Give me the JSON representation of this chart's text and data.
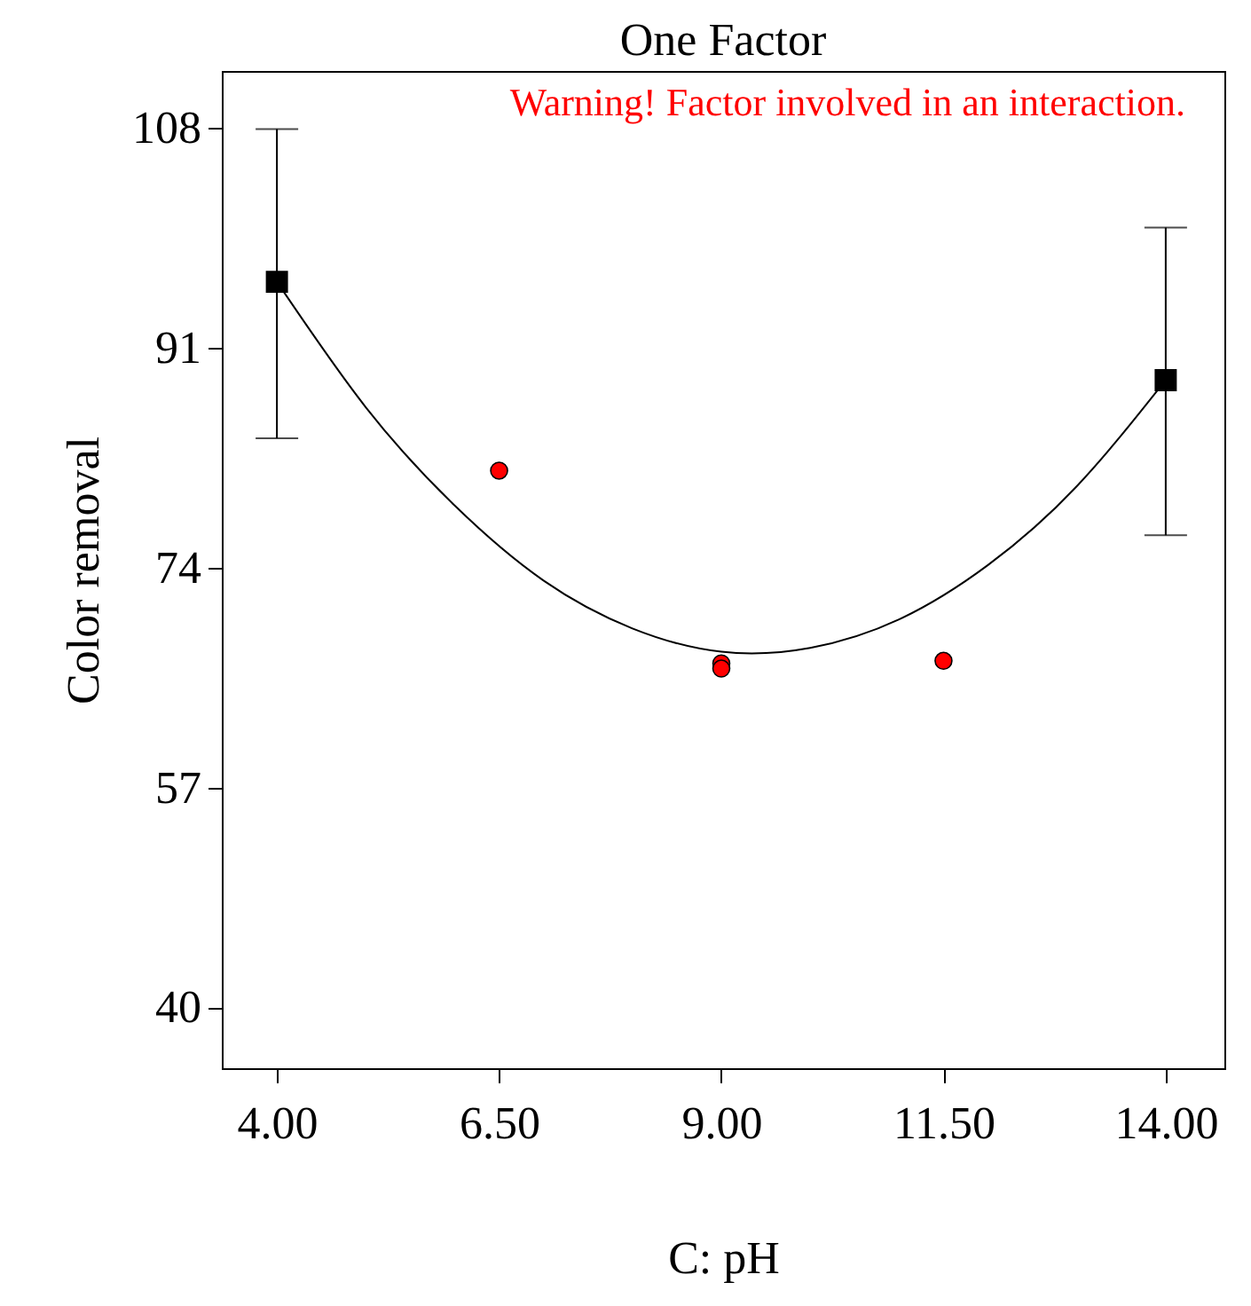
{
  "chart_data": {
    "type": "scatter",
    "title": "One Factor",
    "xlabel": "C: pH",
    "ylabel": "Color removal",
    "annotations": [
      "Warning! Factor involved in an interaction."
    ],
    "xlim": [
      3.38,
      14.66
    ],
    "ylim": [
      35.3,
      112.4
    ],
    "xticks": [
      {
        "value": 4,
        "label": "4.00"
      },
      {
        "value": 6.5,
        "label": "6.50"
      },
      {
        "value": 9,
        "label": "9.00"
      },
      {
        "value": 11.5,
        "label": "11.50"
      },
      {
        "value": 14,
        "label": "14.00"
      }
    ],
    "yticks": [
      40,
      57,
      74,
      91,
      108
    ],
    "grid": false,
    "series": [
      {
        "type": "line",
        "color": "#000000",
        "marker": "none",
        "x": [
          4,
          5,
          6,
          7,
          8,
          9,
          10,
          11,
          12,
          13,
          14
        ],
        "values": [
          96.1,
          86.4,
          78.8,
          73.0,
          69.3,
          67.5,
          67.8,
          70.0,
          74.2,
          80.3,
          88.5
        ]
      },
      {
        "color": "#ff0000",
        "marker": "circle",
        "x": [
          6.5,
          9,
          9,
          11.5
        ],
        "values": [
          81.5,
          66.6,
          66.2,
          66.8
        ]
      },
      {
        "color": "#000000",
        "marker": "square",
        "x": [
          4,
          14
        ],
        "values": [
          96.1,
          88.5
        ],
        "errors": [
          [
            84.0,
            107.9
          ],
          [
            76.5,
            100.3
          ]
        ]
      }
    ]
  }
}
